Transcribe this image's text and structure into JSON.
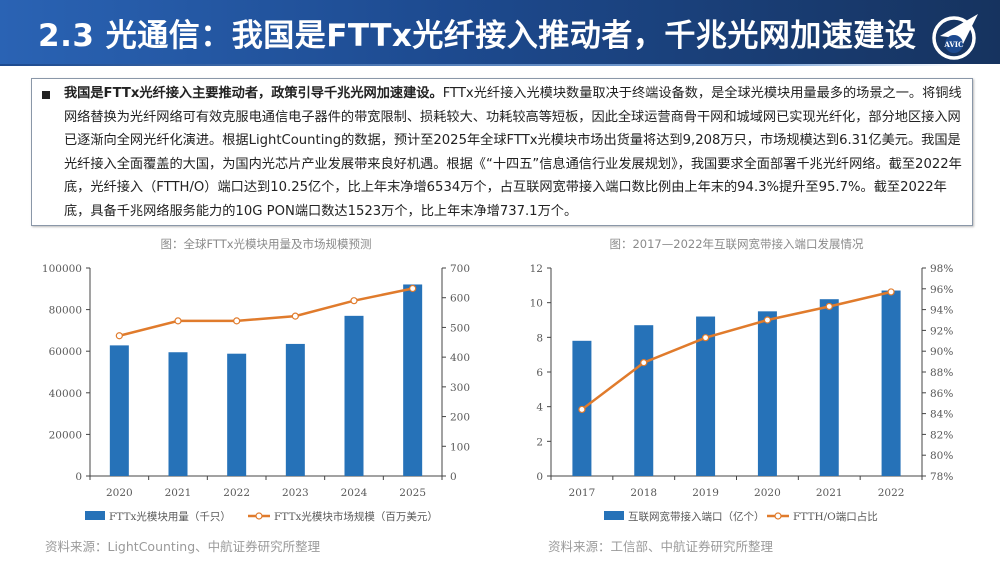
{
  "header": {
    "title": "2.3 光通信：我国是FTTx光纤接入推动者，千兆光网加速建设",
    "logo_text": "AVIC"
  },
  "summary": {
    "bold_lead": "我国是FTTx光纤接入主要推动者，政策引导千兆光网加速建设。",
    "body": "FTTx光纤接入光模块数量取决于终端设备数，是全球光模块用量最多的场景之一。将铜线网络替换为光纤网络可有效克服电通信电子器件的带宽限制、损耗较大、功耗较高等短板，因此全球运营商骨干网和城域网已实现光纤化，部分地区接入网已逐渐向全网光纤化演进。根据LightCounting的数据，预计至2025年全球FTTx光模块市场出货量将达到9,208万只，市场规模达到6.31亿美元。我国是光纤接入全面覆盖的大国，为国内光芯片产业发展带来良好机遇。根据《“十四五”信息通信行业发展规划》，我国要求全面部署千兆光纤网络。截至2022年底，光纤接入（FTTH/O）端口达到10.25亿个，比上年末净增6534万个，占互联网宽带接入端口数比例由上年末的94.3%提升至95.7%。截至2022年底，具备千兆网络服务能力的10G PON端口数达1523万个，比上年末净增737.1万个。"
  },
  "colors": {
    "bar": "#2672b8",
    "line": "#e07b2c",
    "header_start": "#2a63b4",
    "header_end": "#16335f"
  },
  "chart_data": [
    {
      "type": "bar",
      "title": "图：全球FTTx光模块用量及市场规模预测",
      "categories": [
        "2020",
        "2021",
        "2022",
        "2023",
        "2024",
        "2025"
      ],
      "series": [
        {
          "name": "FTTx光模块用量（千只）",
          "kind": "bar",
          "axis": "left",
          "values": [
            62800,
            59500,
            58800,
            63500,
            77000,
            92080
          ]
        },
        {
          "name": "FTTx光模块市场规模（百万美元）",
          "kind": "line",
          "axis": "right",
          "values": [
            472,
            522,
            522,
            538,
            590,
            631
          ]
        }
      ],
      "ylim_left": [
        0,
        100000
      ],
      "yticks_left": [
        "0",
        "20000",
        "40000",
        "60000",
        "80000",
        "100000"
      ],
      "ylim_right": [
        0,
        700
      ],
      "yticks_right": [
        "0",
        "100",
        "200",
        "300",
        "400",
        "500",
        "600",
        "700"
      ],
      "legend_position": "bottom",
      "grid": false,
      "source": "资料来源：LightCounting、中航证券研究所整理"
    },
    {
      "type": "bar",
      "title": "图：2017—2022年互联网宽带接入端口发展情况",
      "categories": [
        "2017",
        "2018",
        "2019",
        "2020",
        "2021",
        "2022"
      ],
      "series": [
        {
          "name": "互联网宽带接入端口（亿个）",
          "kind": "bar",
          "axis": "left",
          "values": [
            7.8,
            8.7,
            9.2,
            9.5,
            10.2,
            10.7
          ]
        },
        {
          "name": "FTTH/O端口占比",
          "kind": "line",
          "axis": "right",
          "values": [
            84.4,
            88.9,
            91.3,
            93.0,
            94.3,
            95.7
          ]
        }
      ],
      "ylim_left": [
        0,
        12
      ],
      "yticks_left": [
        "0",
        "2",
        "4",
        "6",
        "8",
        "10",
        "12"
      ],
      "ylim_right": [
        78,
        98
      ],
      "yticks_right": [
        "78%",
        "80%",
        "82%",
        "84%",
        "86%",
        "88%",
        "90%",
        "92%",
        "94%",
        "96%",
        "98%"
      ],
      "legend_position": "bottom",
      "grid": false,
      "source": "资料来源：工信部、中航证券研究所整理"
    }
  ]
}
